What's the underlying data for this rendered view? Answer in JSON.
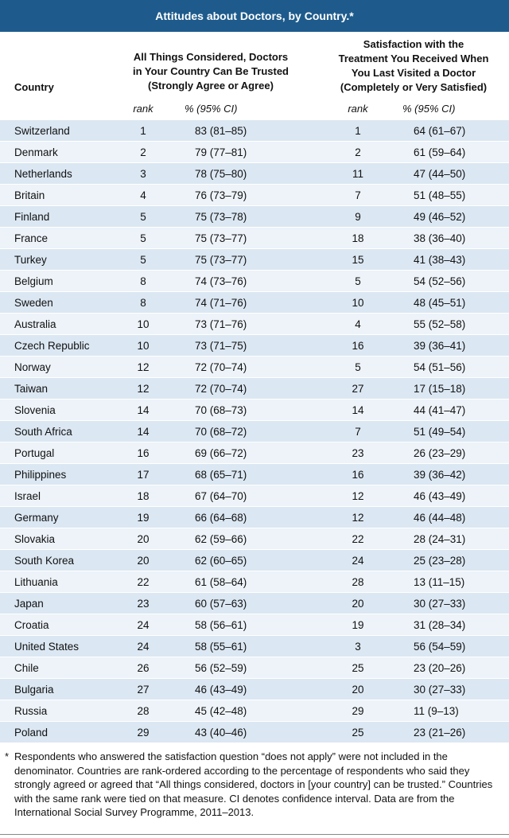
{
  "header": {
    "title": "Attitudes about Doctors, by Country.*"
  },
  "columns": {
    "country": "Country",
    "trust": [
      "All Things Considered, Doctors",
      "in Your Country Can Be Trusted",
      "(Strongly Agree or Agree)"
    ],
    "satisfaction": [
      "Satisfaction with the",
      "Treatment You Received When",
      "You Last Visited a Doctor",
      "(Completely or Very Satisfied)"
    ],
    "subheaders": [
      "rank",
      "% (95% CI)",
      "rank",
      "% (95% CI)"
    ]
  },
  "table": {
    "rows": [
      [
        "Switzerland",
        "1",
        "83 (81–85)",
        "1",
        "64 (61–67)"
      ],
      [
        "Denmark",
        "2",
        "79 (77–81)",
        "2",
        "61 (59–64)"
      ],
      [
        "Netherlands",
        "3",
        "78 (75–80)",
        "11",
        "47 (44–50)"
      ],
      [
        "Britain",
        "4",
        "76 (73–79)",
        "7",
        "51 (48–55)"
      ],
      [
        "Finland",
        "5",
        "75 (73–78)",
        "9",
        "49 (46–52)"
      ],
      [
        "France",
        "5",
        "75 (73–77)",
        "18",
        "38 (36–40)"
      ],
      [
        "Turkey",
        "5",
        "75 (73–77)",
        "15",
        "41 (38–43)"
      ],
      [
        "Belgium",
        "8",
        "74 (73–76)",
        "5",
        "54 (52–56)"
      ],
      [
        "Sweden",
        "8",
        "74 (71–76)",
        "10",
        "48 (45–51)"
      ],
      [
        "Australia",
        "10",
        "73 (71–76)",
        "4",
        "55 (52–58)"
      ],
      [
        "Czech Republic",
        "10",
        "73 (71–75)",
        "16",
        "39 (36–41)"
      ],
      [
        "Norway",
        "12",
        "72 (70–74)",
        "5",
        "54 (51–56)"
      ],
      [
        "Taiwan",
        "12",
        "72 (70–74)",
        "27",
        "17 (15–18)"
      ],
      [
        "Slovenia",
        "14",
        "70 (68–73)",
        "14",
        "44 (41–47)"
      ],
      [
        "South Africa",
        "14",
        "70 (68–72)",
        "7",
        "51 (49–54)"
      ],
      [
        "Portugal",
        "16",
        "69 (66–72)",
        "23",
        "26 (23–29)"
      ],
      [
        "Philippines",
        "17",
        "68 (65–71)",
        "16",
        "39 (36–42)"
      ],
      [
        "Israel",
        "18",
        "67 (64–70)",
        "12",
        "46 (43–49)"
      ],
      [
        "Germany",
        "19",
        "66 (64–68)",
        "12",
        "46 (44–48)"
      ],
      [
        "Slovakia",
        "20",
        "62 (59–66)",
        "22",
        "28 (24–31)"
      ],
      [
        "South Korea",
        "20",
        "62 (60–65)",
        "24",
        "25 (23–28)"
      ],
      [
        "Lithuania",
        "22",
        "61 (58–64)",
        "28",
        "13 (11–15)"
      ],
      [
        "Japan",
        "23",
        "60 (57–63)",
        "20",
        "30 (27–33)"
      ],
      [
        "Croatia",
        "24",
        "58 (56–61)",
        "19",
        "31 (28–34)"
      ],
      [
        "United States",
        "24",
        "58 (55–61)",
        "3",
        "56 (54–59)"
      ],
      [
        "Chile",
        "26",
        "56 (52–59)",
        "25",
        "23 (20–26)"
      ],
      [
        "Bulgaria",
        "27",
        "46 (43–49)",
        "20",
        "30 (27–33)"
      ],
      [
        "Russia",
        "28",
        "45 (42–48)",
        "29",
        "11 (9–13)"
      ],
      [
        "Poland",
        "29",
        "43 (40–46)",
        "25",
        "23 (21–26)"
      ]
    ]
  },
  "footnote": {
    "marker": "*",
    "text": "Respondents who answered the satisfaction question “does not apply” were not included in the denominator. Countries are rank-ordered according to the percentage of respondents who said they strongly agreed or agreed that “All things considered, doctors in [your country] can be trusted.” Countries with the same rank were tied on that measure. CI denotes confidence interval. Data are from the International Social Survey Programme, 2011–2013."
  }
}
